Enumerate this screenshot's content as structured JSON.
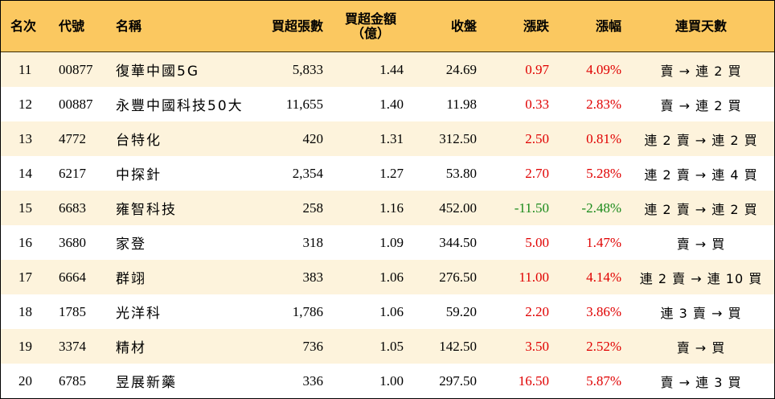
{
  "headers": {
    "rank": "名次",
    "code": "代號",
    "name": "名稱",
    "lots": "買超張數",
    "amount_line1": "買超金額",
    "amount_line2": "（億）",
    "close": "收盤",
    "change": "漲跌",
    "pct": "漲幅",
    "days": "連買天數"
  },
  "colors": {
    "header_bg": "#fbc860",
    "stripe": "#fdf3dc",
    "up": "#e00000",
    "down": "#1a8a1a"
  },
  "rows": [
    {
      "rank": "11",
      "code": "00877",
      "name": "復華中國5G",
      "lots": "5,833",
      "amount": "1.44",
      "close": "24.69",
      "change": "0.97",
      "pct": "4.09%",
      "dir": "up",
      "days": "賣 → 連 2 買"
    },
    {
      "rank": "12",
      "code": "00887",
      "name": "永豐中國科技50大",
      "lots": "11,655",
      "amount": "1.40",
      "close": "11.98",
      "change": "0.33",
      "pct": "2.83%",
      "dir": "up",
      "days": "賣 → 連 2 買"
    },
    {
      "rank": "13",
      "code": "4772",
      "name": "台特化",
      "lots": "420",
      "amount": "1.31",
      "close": "312.50",
      "change": "2.50",
      "pct": "0.81%",
      "dir": "up",
      "days": "連 2 賣 → 連 2 買"
    },
    {
      "rank": "14",
      "code": "6217",
      "name": "中探針",
      "lots": "2,354",
      "amount": "1.27",
      "close": "53.80",
      "change": "2.70",
      "pct": "5.28%",
      "dir": "up",
      "days": "連 2 賣 → 連 4 買"
    },
    {
      "rank": "15",
      "code": "6683",
      "name": "雍智科技",
      "lots": "258",
      "amount": "1.16",
      "close": "452.00",
      "change": "-11.50",
      "pct": "-2.48%",
      "dir": "down",
      "days": "連 2 賣 → 連 2 買"
    },
    {
      "rank": "16",
      "code": "3680",
      "name": "家登",
      "lots": "318",
      "amount": "1.09",
      "close": "344.50",
      "change": "5.00",
      "pct": "1.47%",
      "dir": "up",
      "days": "賣 → 買"
    },
    {
      "rank": "17",
      "code": "6664",
      "name": "群翊",
      "lots": "383",
      "amount": "1.06",
      "close": "276.50",
      "change": "11.00",
      "pct": "4.14%",
      "dir": "up",
      "days": "連 2 賣 → 連 10 買"
    },
    {
      "rank": "18",
      "code": "1785",
      "name": "光洋科",
      "lots": "1,786",
      "amount": "1.06",
      "close": "59.20",
      "change": "2.20",
      "pct": "3.86%",
      "dir": "up",
      "days": "連 3 賣 → 買"
    },
    {
      "rank": "19",
      "code": "3374",
      "name": "精材",
      "lots": "736",
      "amount": "1.05",
      "close": "142.50",
      "change": "3.50",
      "pct": "2.52%",
      "dir": "up",
      "days": "賣 → 買"
    },
    {
      "rank": "20",
      "code": "6785",
      "name": "昱展新藥",
      "lots": "336",
      "amount": "1.00",
      "close": "297.50",
      "change": "16.50",
      "pct": "5.87%",
      "dir": "up",
      "days": "賣 → 連 3 買"
    }
  ]
}
